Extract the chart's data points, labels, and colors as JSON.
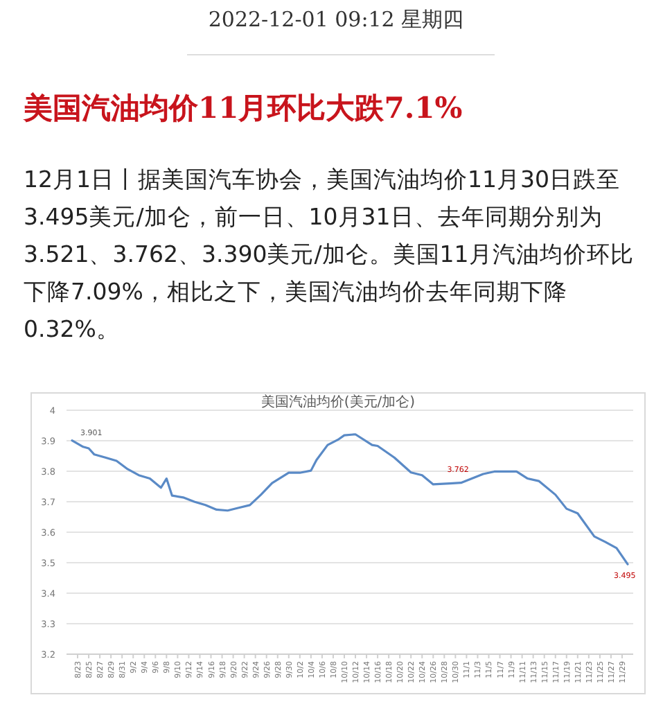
{
  "chart_data": {
    "type": "line",
    "title": "美国汽油均价(美元/加仑)",
    "annotations": [
      "2022-12-01 09:12 星期四",
      "美国汽油均价11月环比大跌7.1%",
      "12月1日丨据美国汽车协会，美国汽油均价11月30日跌至3.495美元/加仑，前一日、10月31日、去年同期分别为3.521、3.762、3.390美元/加仑。美国11月汽油均价环比下降7.09%，相比之下，美国汽油均价去年同期下降0.32%。",
      {
        "text": "3.901",
        "x": "--08-22",
        "y": 3.901
      },
      {
        "text": "3.762",
        "x": "--10-31",
        "y": 3.762
      },
      {
        "text": "3.495",
        "x": "--11-30",
        "y": 3.495
      }
    ],
    "x": [
      "--08-22",
      "--08-24",
      "--08-25",
      "--08-26",
      "--08-28",
      "--08-30",
      "--09-01",
      "--09-03",
      "--09-05",
      "--09-07",
      "--09-08",
      "--09-09",
      "--09-11",
      "--09-13",
      "--09-15",
      "--09-17",
      "--09-19",
      "--09-21",
      "--09-23",
      "--09-25",
      "--09-27",
      "--09-30",
      "--10-02",
      "--10-04",
      "--10-05",
      "--10-07",
      "--10-09",
      "--10-10",
      "--10-12",
      "--10-15",
      "--10-16",
      "--10-19",
      "--10-22",
      "--10-24",
      "--10-26",
      "--10-29",
      "--10-31",
      "--11-04",
      "--11-06",
      "--11-10",
      "--11-12",
      "--11-14",
      "--11-17",
      "--11-19",
      "--11-21",
      "--11-24",
      "--11-26",
      "--11-28",
      "--11-30"
    ],
    "series": [
      {
        "color": "#5a8ac6",
        "values": [
          3.901,
          3.88,
          3.875,
          3.855,
          3.845,
          3.834,
          3.807,
          3.787,
          3.776,
          3.746,
          3.776,
          3.72,
          3.714,
          3.7,
          3.689,
          3.674,
          3.671,
          3.68,
          3.689,
          3.723,
          3.761,
          3.795,
          3.795,
          3.802,
          3.837,
          3.886,
          3.905,
          3.918,
          3.921,
          3.886,
          3.883,
          3.845,
          3.796,
          3.787,
          3.757,
          3.76,
          3.762,
          3.791,
          3.799,
          3.799,
          3.776,
          3.768,
          3.723,
          3.677,
          3.662,
          3.586,
          3.568,
          3.548,
          3.495
        ]
      }
    ],
    "xlim": [
      "--08-21",
      "--12-01"
    ],
    "xticks": [
      {
        "value": "--08-23",
        "label": "8/23"
      },
      {
        "value": "--08-25",
        "label": "8/25"
      },
      {
        "value": "--08-27",
        "label": "8/27"
      },
      {
        "value": "--08-29",
        "label": "8/29"
      },
      {
        "value": "--08-31",
        "label": "8/31"
      },
      {
        "value": "--09-02",
        "label": "9/2"
      },
      {
        "value": "--09-04",
        "label": "9/4"
      },
      {
        "value": "--09-06",
        "label": "9/6"
      },
      {
        "value": "--09-08",
        "label": "9/8"
      },
      {
        "value": "--09-10",
        "label": "9/10"
      },
      {
        "value": "--09-12",
        "label": "9/12"
      },
      {
        "value": "--09-14",
        "label": "9/14"
      },
      {
        "value": "--09-16",
        "label": "9/16"
      },
      {
        "value": "--09-18",
        "label": "9/18"
      },
      {
        "value": "--09-20",
        "label": "9/20"
      },
      {
        "value": "--09-22",
        "label": "9/22"
      },
      {
        "value": "--09-24",
        "label": "9/24"
      },
      {
        "value": "--09-26",
        "label": "9/26"
      },
      {
        "value": "--09-28",
        "label": "9/28"
      },
      {
        "value": "--09-30",
        "label": "9/30"
      },
      {
        "value": "--10-02",
        "label": "10/2"
      },
      {
        "value": "--10-04",
        "label": "10/4"
      },
      {
        "value": "--10-06",
        "label": "10/6"
      },
      {
        "value": "--10-08",
        "label": "10/8"
      },
      {
        "value": "--10-10",
        "label": "10/10"
      },
      {
        "value": "--10-12",
        "label": "10/12"
      },
      {
        "value": "--10-14",
        "label": "10/14"
      },
      {
        "value": "--10-16",
        "label": "10/16"
      },
      {
        "value": "--10-18",
        "label": "10/18"
      },
      {
        "value": "--10-20",
        "label": "10/20"
      },
      {
        "value": "--10-22",
        "label": "10/22"
      },
      {
        "value": "--10-24",
        "label": "10/24"
      },
      {
        "value": "--10-26",
        "label": "10/26"
      },
      {
        "value": "--10-28",
        "label": "10/28"
      },
      {
        "value": "--10-30",
        "label": "10/30"
      },
      {
        "value": "--11-01",
        "label": "11/1"
      },
      {
        "value": "--11-03",
        "label": "11/3"
      },
      {
        "value": "--11-05",
        "label": "11/5"
      },
      {
        "value": "--11-07",
        "label": "11/7"
      },
      {
        "value": "--11-09",
        "label": "11/9"
      },
      {
        "value": "--11-11",
        "label": "11/11"
      },
      {
        "value": "--11-13",
        "label": "11/13"
      },
      {
        "value": "--11-15",
        "label": "11/15"
      },
      {
        "value": "--11-17",
        "label": "11/17"
      },
      {
        "value": "--11-19",
        "label": "11/19"
      },
      {
        "value": "--11-21",
        "label": "11/21"
      },
      {
        "value": "--11-23",
        "label": "11/23"
      },
      {
        "value": "--11-25",
        "label": "11/25"
      },
      {
        "value": "--11-27",
        "label": "11/27"
      },
      {
        "value": "--11-29",
        "label": "11/29"
      }
    ],
    "ylim": [
      3.2,
      4
    ],
    "yticks": [
      3.2,
      3.3,
      3.4,
      3.5,
      3.6,
      3.7,
      3.8,
      3.9,
      4
    ],
    "grid": "y"
  }
}
